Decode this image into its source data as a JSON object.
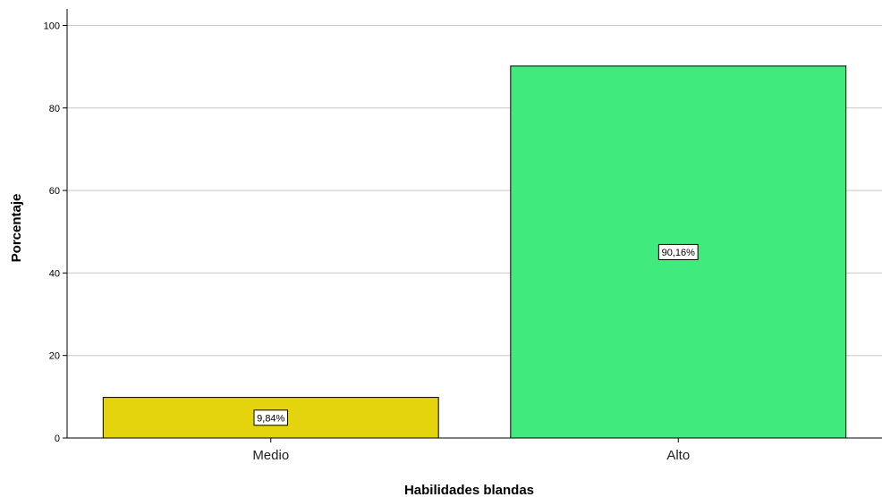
{
  "chart_data": {
    "type": "bar",
    "categories": [
      "Medio",
      "Alto"
    ],
    "values": [
      9.84,
      90.16
    ],
    "data_labels": [
      "9,84%",
      "90,16%"
    ],
    "bar_colors": [
      "#e3d40d",
      "#41ea7d"
    ],
    "xlabel": "Habilidades blandas",
    "ylabel": "Porcentaje",
    "ylim": [
      0,
      104
    ],
    "yticks": [
      0,
      20,
      40,
      60,
      80,
      100
    ],
    "grid": true,
    "legend": "none"
  }
}
